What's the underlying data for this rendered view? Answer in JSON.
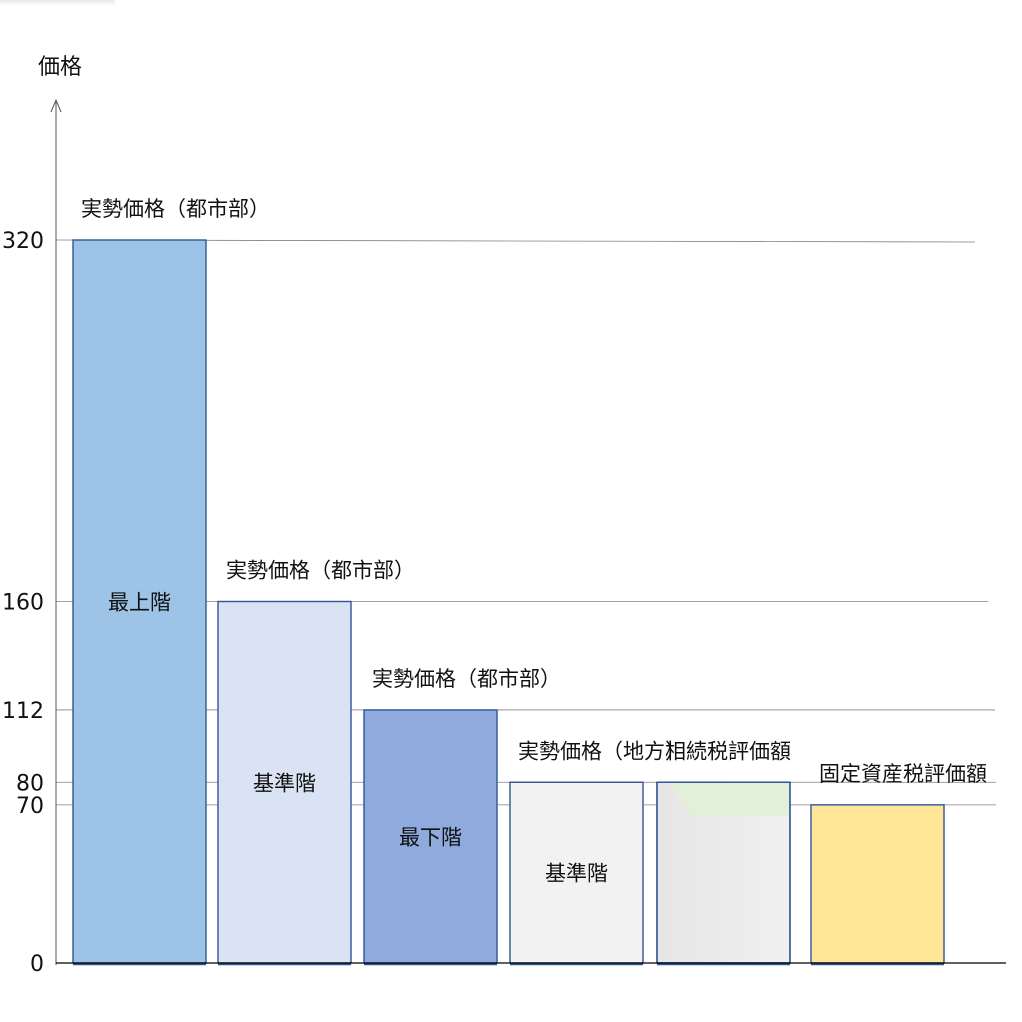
{
  "chart_data": {
    "type": "bar",
    "ylabel": "価格",
    "ylim": [
      0,
      340
    ],
    "y_ticks": [
      0,
      70,
      80,
      112,
      160,
      320
    ],
    "grid": "horizontal lines at tick values",
    "bars": [
      {
        "value": 320,
        "top_label": "実勢価格（都市部）",
        "inner_label": "最上階",
        "color": "#9DC3E6"
      },
      {
        "value": 160,
        "top_label": "実勢価格（都市部）",
        "inner_label": "基準階",
        "color": "#DAE3F3"
      },
      {
        "value": 112,
        "top_label": "実勢価格（都市部）",
        "inner_label": "最下階",
        "color": "#8FAADC"
      },
      {
        "value": 80,
        "top_label": "実勢価格（地方）",
        "inner_label": "基準階",
        "color": "#F2F2F2"
      },
      {
        "value": 80,
        "top_label": "相続税評価額",
        "inner_label": "",
        "color": "#E2F0D9"
      },
      {
        "value": 70,
        "top_label": "固定資産税評価額",
        "inner_label": "",
        "color": "#FFE699"
      }
    ],
    "colors": {
      "bar_border": "#2F5597",
      "grid": "#808080",
      "axis": "#000000"
    }
  }
}
